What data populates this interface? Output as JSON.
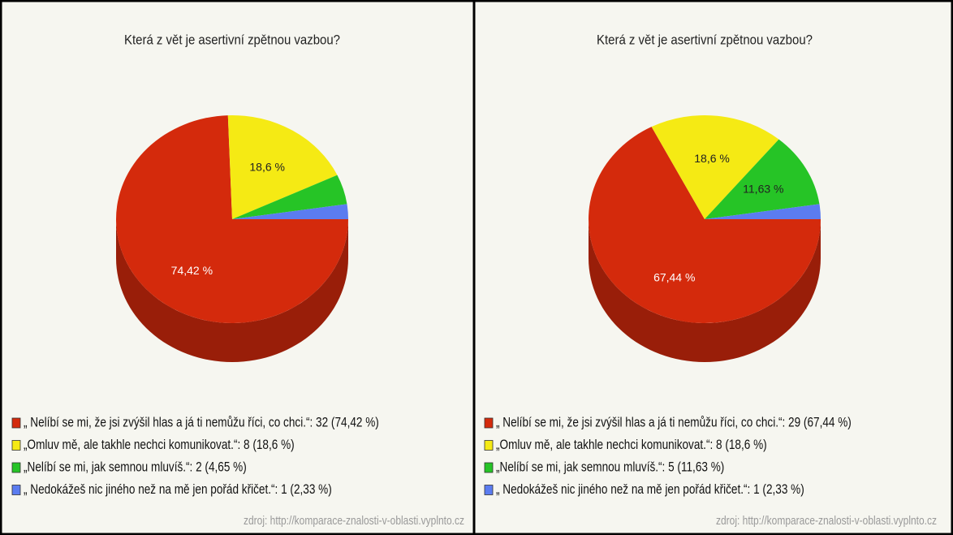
{
  "chart_data": [
    {
      "type": "pie",
      "title": "Která z vět je asertivní zpětnou vazbou?",
      "categories": [
        "„ Nelíbí se mi, že jsi zvýšil hlas a já ti nemůžu říci, co chci.“: 32 (74,42 %)",
        "„Omluv mě, ale takhle nechci komunikovat.“: 8 (18,6 %)",
        "„Nelíbí se mi, jak semnou mluvíš.“: 2 (4,65 %)",
        "„ Nedokážeš nic jiného než na mě jen pořád křičet.“: 1 (2,33 %)"
      ],
      "values": [
        74.42,
        18.6,
        4.65,
        2.33
      ],
      "value_labels": [
        "74,42 %",
        "18,6 %",
        null,
        null
      ],
      "colors": [
        "#d42a0c",
        "#f5ea14",
        "#26c426",
        "#5b7cf0"
      ],
      "source": "zdroj: http://komparace-znalosti-v-oblasti.vyplnto.cz"
    },
    {
      "type": "pie",
      "title": "Která z vět je asertivní zpětnou vazbou?",
      "categories": [
        "„ Nelíbí se mi, že jsi zvýšil hlas a já ti nemůžu říci, co chci.“: 29 (67,44 %)",
        "„Omluv mě, ale takhle nechci komunikovat.“: 8 (18,6 %)",
        "„Nelíbí se mi, jak semnou mluvíš.“: 5 (11,63 %)",
        "„ Nedokážeš nic jiného než na mě jen pořád křičet.“: 1 (2,33 %)"
      ],
      "values": [
        67.44,
        18.6,
        11.63,
        2.33
      ],
      "value_labels": [
        "67,44 %",
        "18,6 %",
        "11,63 %",
        null
      ],
      "colors": [
        "#d42a0c",
        "#f5ea14",
        "#26c426",
        "#5b7cf0"
      ],
      "source": "zdroj: http://komparace-znalosti-v-oblasti.vyplnto.cz"
    }
  ]
}
